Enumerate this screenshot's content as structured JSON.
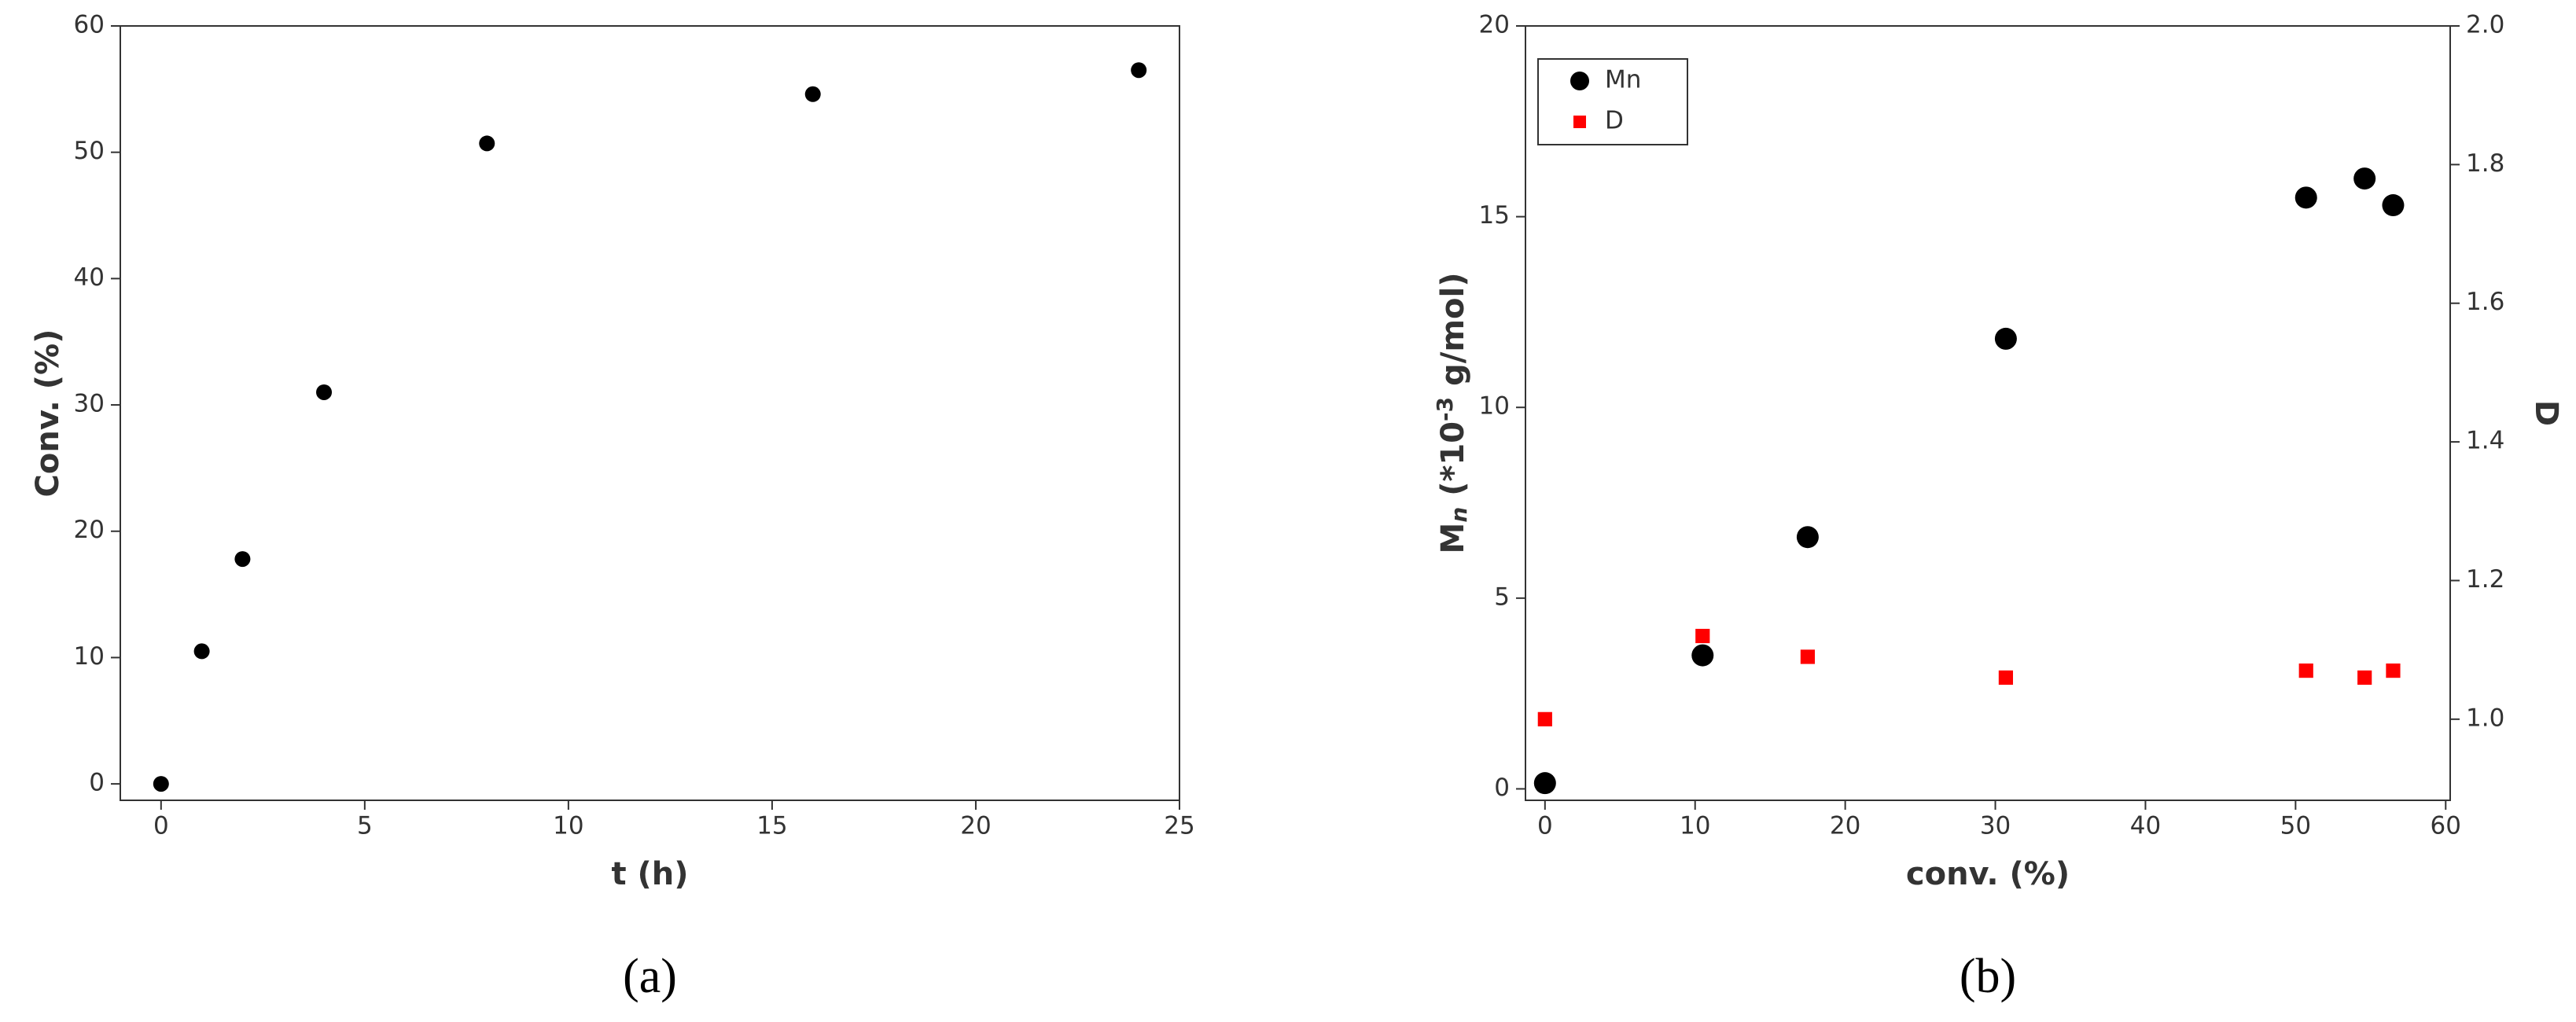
{
  "chart_data": [
    {
      "type": "scatter",
      "caption": "(a)",
      "xlabel": "t (h)",
      "ylabel": "Conv. (%)",
      "x": [
        0,
        1,
        2,
        4,
        8,
        16,
        24
      ],
      "values": [
        0,
        10.5,
        17.8,
        31,
        50.7,
        54.6,
        56.5
      ],
      "color": "#000000",
      "xlim": [
        -1,
        25
      ],
      "xticks": [
        0,
        5,
        10,
        15,
        20,
        25
      ],
      "ylim": [
        -1.3,
        60
      ],
      "yticks": [
        0,
        10,
        20,
        30,
        40,
        50,
        60
      ]
    },
    {
      "type": "scatter",
      "caption": "(b)",
      "xlabel": "conv. (%)",
      "ylabel": {
        "main": "M",
        "sub": "n",
        "mid": " (*10",
        "sup": "-3",
        "end": " g/mol)"
      },
      "y2label": "D",
      "x": [
        0,
        10.5,
        17.5,
        30.7,
        50.7,
        54.6,
        56.5
      ],
      "series": [
        {
          "name": "Mn",
          "color": "#000000",
          "marker": "circle",
          "values": [
            0.15,
            3.5,
            6.6,
            11.8,
            15.5,
            16,
            15.3
          ]
        },
        {
          "name": "D",
          "color": "#ff0000",
          "marker": "square",
          "axis": "y2",
          "values": [
            1.0,
            1.12,
            1.09,
            1.06,
            1.07,
            1.06,
            1.07
          ]
        }
      ],
      "legend": "upper left",
      "xlim": [
        -1.3,
        60.3
      ],
      "xticks": [
        0,
        10,
        20,
        30,
        40,
        50,
        60
      ],
      "ylim": [
        -0.3,
        20
      ],
      "yticks": [
        0,
        5,
        10,
        15,
        20
      ],
      "y2lim": [
        0.883,
        2.0
      ],
      "y2ticks": [
        {
          "value": 1,
          "label": "1.0"
        },
        1.2,
        1.4,
        1.6,
        1.8,
        {
          "value": 2,
          "label": "2.0"
        }
      ]
    }
  ]
}
